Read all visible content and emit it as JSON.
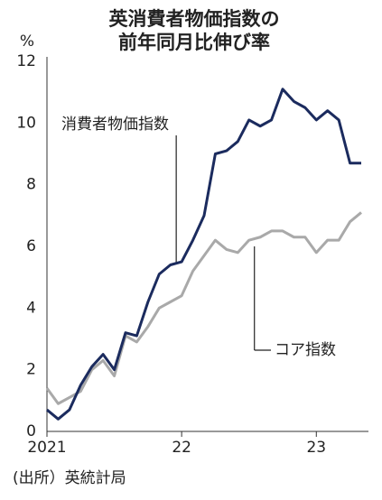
{
  "chart_data": {
    "type": "line",
    "title": [
      "英消費者物価指数の",
      "前年同月比伸び率"
    ],
    "y_unit": "%",
    "source": "(出所）英統計局",
    "categories": [
      "2021",
      null,
      null,
      null,
      null,
      null,
      null,
      null,
      null,
      null,
      null,
      null,
      "22",
      null,
      null,
      null,
      null,
      null,
      null,
      null,
      null,
      null,
      null,
      null,
      "23",
      null,
      null,
      null,
      null
    ],
    "series": [
      {
        "name": "消費者物価指数",
        "color": "#1b2b5e",
        "values": [
          0.7,
          0.4,
          0.7,
          1.5,
          2.1,
          2.5,
          2.0,
          3.2,
          3.1,
          4.2,
          5.1,
          5.4,
          5.5,
          6.2,
          7.0,
          9.0,
          9.1,
          9.4,
          10.1,
          9.9,
          10.1,
          11.1,
          10.7,
          10.5,
          10.1,
          10.4,
          10.1,
          8.7,
          8.7
        ]
      },
      {
        "name": "コア指数",
        "color": "#a9a9a9",
        "values": [
          1.4,
          0.9,
          1.1,
          1.3,
          2.0,
          2.3,
          1.8,
          3.1,
          2.9,
          3.4,
          4.0,
          4.2,
          4.4,
          5.2,
          5.7,
          6.2,
          5.9,
          5.8,
          6.2,
          6.3,
          6.5,
          6.5,
          6.3,
          6.3,
          5.8,
          6.2,
          6.2,
          6.8,
          7.1
        ]
      }
    ],
    "ylim": [
      0,
      12
    ],
    "yticks": [
      0,
      2,
      4,
      6,
      8,
      10,
      12
    ],
    "grid": false
  }
}
